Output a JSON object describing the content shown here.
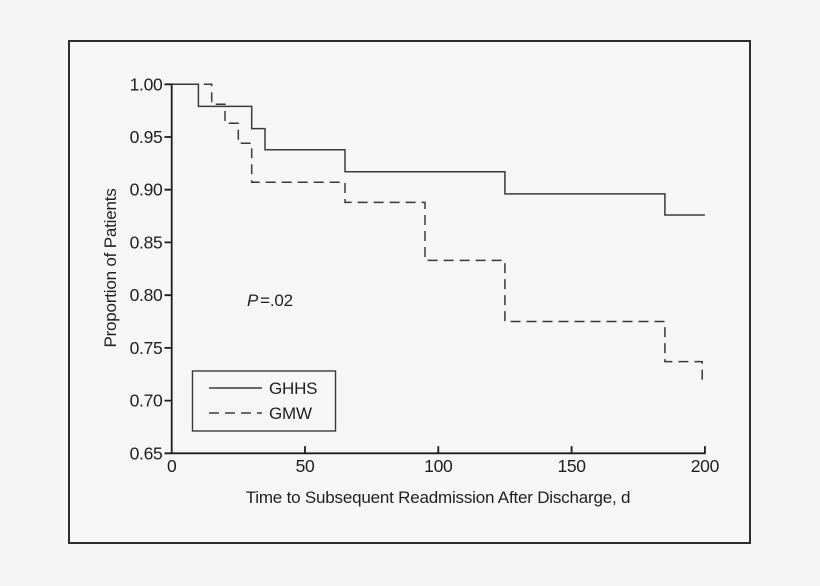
{
  "figure": {
    "background_color": "#f5f5f5",
    "frame_color": "#2d2d2d"
  },
  "chart_data": {
    "type": "line",
    "subtype": "kaplan-meier-step-plot",
    "title": "",
    "xlabel": "Time to Subsequent Readmission After Discharge, d",
    "ylabel": "Proportion of Patients",
    "xlim": [
      0,
      200
    ],
    "ylim": [
      0.65,
      1.0
    ],
    "grid": false,
    "x_ticks": {
      "values": [
        0,
        50,
        100,
        150,
        200
      ],
      "labels": [
        "0",
        "50",
        "100",
        "150",
        "200"
      ]
    },
    "y_ticks": {
      "values": [
        1.0,
        0.95,
        0.9,
        0.85,
        0.8,
        0.75,
        0.7,
        0.65
      ],
      "labels": [
        "1.00",
        "0.95",
        "0.90",
        "0.85",
        "0.80",
        "0.75",
        "0.70",
        "0.65"
      ]
    },
    "line_color": "#3a3a3a",
    "axis_color": "#1d1d1d",
    "text_color": "#1f1f1f",
    "annotation": {
      "symbol": "P",
      "rest": "=.02"
    },
    "legend": {
      "position": "lower-left",
      "entries": [
        {
          "label": "GHHS",
          "style": "solid"
        },
        {
          "label": "GMW",
          "style": "dashed"
        }
      ]
    },
    "series": [
      {
        "name": "GHHS",
        "style": "solid",
        "points": [
          [
            0,
            1.0
          ],
          [
            10,
            1.0
          ],
          [
            10,
            0.979
          ],
          [
            30,
            0.979
          ],
          [
            30,
            0.958
          ],
          [
            35,
            0.958
          ],
          [
            35,
            0.938
          ],
          [
            65,
            0.938
          ],
          [
            65,
            0.917
          ],
          [
            125,
            0.917
          ],
          [
            125,
            0.896
          ],
          [
            185,
            0.896
          ],
          [
            185,
            0.876
          ],
          [
            200,
            0.876
          ]
        ]
      },
      {
        "name": "GMW",
        "style": "dashed",
        "points": [
          [
            0,
            1.0
          ],
          [
            15,
            1.0
          ],
          [
            15,
            0.981
          ],
          [
            20,
            0.981
          ],
          [
            20,
            0.963
          ],
          [
            25,
            0.963
          ],
          [
            25,
            0.944
          ],
          [
            30,
            0.944
          ],
          [
            30,
            0.907
          ],
          [
            65,
            0.907
          ],
          [
            65,
            0.888
          ],
          [
            95,
            0.888
          ],
          [
            95,
            0.833
          ],
          [
            125,
            0.833
          ],
          [
            125,
            0.775
          ],
          [
            185,
            0.775
          ],
          [
            185,
            0.737
          ],
          [
            199,
            0.737
          ],
          [
            199,
            0.719
          ],
          [
            200,
            0.719
          ]
        ]
      }
    ]
  }
}
